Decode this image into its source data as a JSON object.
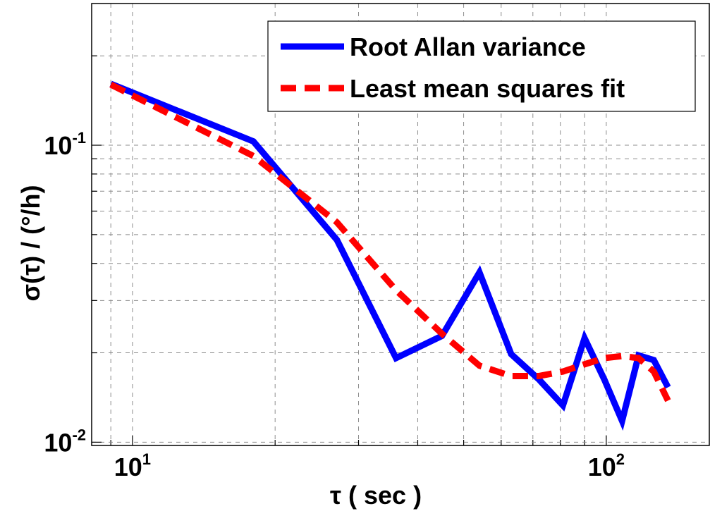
{
  "chart_data": {
    "type": "line",
    "xscale": "log",
    "yscale": "log",
    "xlim": [
      8.2,
      165
    ],
    "ylim": [
      0.00975,
      0.3
    ],
    "grid": true,
    "xlabel": "τ ( sec )",
    "ylabel": "σ(τ) / (°/h)",
    "x_ticks": [
      {
        "mantissa": "10",
        "exponent": "1",
        "value": 10
      },
      {
        "mantissa": "10",
        "exponent": "2",
        "value": 100
      }
    ],
    "y_ticks": [
      {
        "mantissa": "10",
        "exponent": "-1",
        "value": 0.1
      },
      {
        "mantissa": "10",
        "exponent": "-2",
        "value": 0.01
      }
    ],
    "legend_position": "top-right",
    "series": [
      {
        "name": "Root Allan variance",
        "color": "#0000ff",
        "style": "solid",
        "x": [
          9,
          18,
          27,
          36,
          45,
          54,
          63,
          72,
          81,
          90,
          99,
          108,
          117,
          126,
          135
        ],
        "y": [
          0.161,
          0.103,
          0.048,
          0.0192,
          0.0228,
          0.0373,
          0.0198,
          0.0163,
          0.0133,
          0.0224,
          0.0163,
          0.0118,
          0.0196,
          0.0189,
          0.0153
        ]
      },
      {
        "name": "Least mean squares fit",
        "color": "#ff0000",
        "style": "dashed",
        "x": [
          9,
          18,
          27,
          36,
          45,
          54,
          63,
          72,
          81,
          90,
          99,
          108,
          117,
          126,
          135
        ],
        "y": [
          0.16,
          0.092,
          0.055,
          0.0325,
          0.0232,
          0.0181,
          0.0167,
          0.0167,
          0.0173,
          0.0183,
          0.0192,
          0.0195,
          0.0192,
          0.0173,
          0.0138
        ]
      }
    ]
  }
}
